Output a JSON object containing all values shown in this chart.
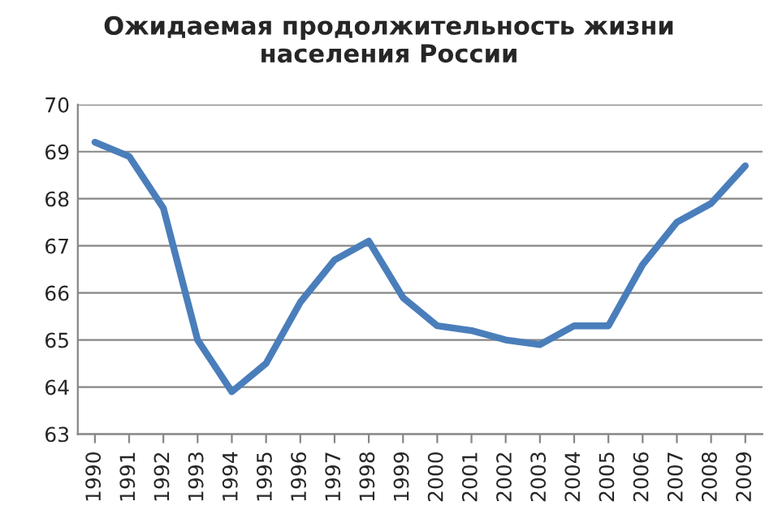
{
  "chart_data": {
    "type": "line",
    "title": "Ожидаемая продолжительность жизни\nнаселения России",
    "categories": [
      "1990",
      "1991",
      "1992",
      "1993",
      "1994",
      "1995",
      "1996",
      "1997",
      "1998",
      "1999",
      "2000",
      "2001",
      "2002",
      "2003",
      "2004",
      "2005",
      "2006",
      "2007",
      "2008",
      "2009"
    ],
    "series": [
      {
        "color": "#4a7ebb",
        "values": [
          69.2,
          68.9,
          67.8,
          65.0,
          63.9,
          64.5,
          65.8,
          66.7,
          67.1,
          65.9,
          65.3,
          65.2,
          65.0,
          64.9,
          65.3,
          65.3,
          66.6,
          67.5,
          67.9,
          68.7
        ]
      }
    ],
    "ylim": [
      63,
      70
    ],
    "yticks": [
      63,
      64,
      65,
      66,
      67,
      68,
      69,
      70
    ],
    "grid": "y",
    "legend": false,
    "marker": "none",
    "line_style": "solid"
  }
}
